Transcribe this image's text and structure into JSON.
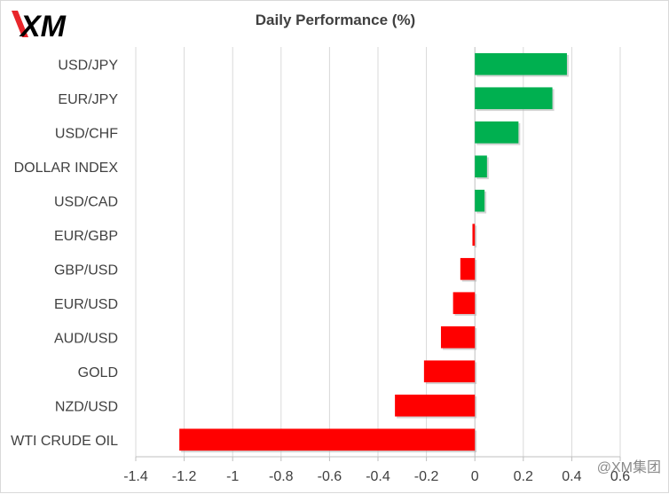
{
  "brand": {
    "logo_text": "XM",
    "logo_colors": {
      "slash": "#e8262b",
      "text": "#000000"
    }
  },
  "watermark": "@XM集团",
  "colors": {
    "positive": "#00b050",
    "negative": "#ff0000",
    "gridline": "#d9d9d9",
    "axis": "#bfbfbf",
    "text": "#404040"
  },
  "chart_data": {
    "type": "bar",
    "orientation": "horizontal",
    "title": "Daily Performance (%)",
    "xlabel": "",
    "ylabel": "",
    "categories": [
      "USD/JPY",
      "EUR/JPY",
      "USD/CHF",
      "DOLLAR INDEX",
      "USD/CAD",
      "EUR/GBP",
      "GBP/USD",
      "EUR/USD",
      "AUD/USD",
      "GOLD",
      "NZD/USD",
      "WTI CRUDE OIL"
    ],
    "values": [
      0.38,
      0.32,
      0.18,
      0.05,
      0.04,
      -0.01,
      -0.06,
      -0.09,
      -0.14,
      -0.21,
      -0.33,
      -1.22
    ],
    "xlim": [
      -1.4,
      0.6
    ],
    "ticks": [
      -1.4,
      -1.2,
      -1,
      -0.8,
      -0.6,
      -0.4,
      -0.2,
      0,
      0.2,
      0.4,
      0.6
    ],
    "tick_labels": [
      "-1.4",
      "-1.2",
      "-1",
      "-0.8",
      "-0.6",
      "-0.4",
      "-0.2",
      "0",
      "0.2",
      "0.4",
      "0.6"
    ],
    "grid": true,
    "legend": "none"
  }
}
